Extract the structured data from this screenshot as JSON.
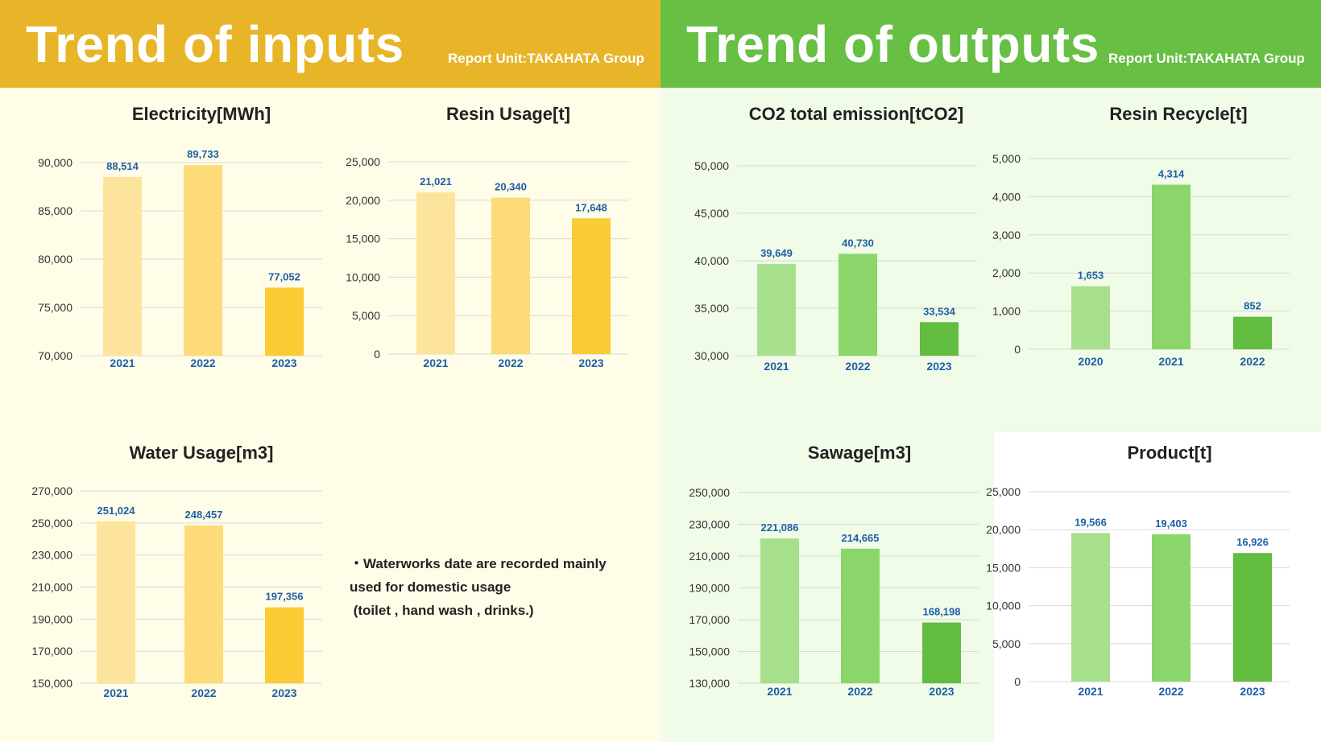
{
  "header": {
    "inputs_title": "Trend of inputs",
    "inputs_unit": "Report Unit:TAKAHATA Group",
    "outputs_title": "Trend of outputs",
    "outputs_unit": "Report Unit:TAKAHATA Group"
  },
  "note": {
    "lines": [
      "・Waterworks date are recorded mainly",
      "used for domestic usage",
      " (toilet , hand wash , drinks.)"
    ]
  },
  "colors": {
    "inputs_header": "#e8b528",
    "outputs_header": "#67bf44",
    "inputs_bars": [
      "#fce49c",
      "#fcdb78",
      "#f9cb35"
    ],
    "outputs_bars": [
      "#a7e08c",
      "#8ad66a",
      "#62bd40"
    ],
    "value_label": "#1f5fa8",
    "grid": "#d9d9d9"
  },
  "chart_data": [
    {
      "id": "electricity",
      "type": "bar",
      "title": "Electricity[MWh]",
      "categories": [
        "2021",
        "2022",
        "2023"
      ],
      "values": [
        88514,
        89733,
        77052
      ],
      "value_labels": [
        "88,514",
        "89,733",
        "77,052"
      ],
      "ylim": [
        70000,
        90000
      ],
      "yticks": [
        "70,000",
        "75,000",
        "80,000",
        "85,000",
        "90,000"
      ],
      "palette": "inputs",
      "grid": true
    },
    {
      "id": "resin-usage",
      "type": "bar",
      "title": "Resin Usage[t]",
      "categories": [
        "2021",
        "2022",
        "2023"
      ],
      "values": [
        21021,
        20340,
        17648
      ],
      "value_labels": [
        "21,021",
        "20,340",
        "17,648"
      ],
      "ylim": [
        0,
        25000
      ],
      "yticks": [
        "0",
        "5,000",
        "10,000",
        "15,000",
        "20,000",
        "25,000"
      ],
      "palette": "inputs",
      "grid": true
    },
    {
      "id": "water-usage",
      "type": "bar",
      "title": "Water Usage[m3]",
      "categories": [
        "2021",
        "2022",
        "2023"
      ],
      "values": [
        251024,
        248457,
        197356
      ],
      "value_labels": [
        "251,024",
        "248,457",
        "197,356"
      ],
      "ylim": [
        150000,
        270000
      ],
      "yticks": [
        "150,000",
        "170,000",
        "190,000",
        "210,000",
        "230,000",
        "250,000",
        "270,000"
      ],
      "palette": "inputs",
      "grid": true
    },
    {
      "id": "co2-emission",
      "type": "bar",
      "title": "CO2 total emission[tCO2]",
      "categories": [
        "2021",
        "2022",
        "2023"
      ],
      "values": [
        39649,
        40730,
        33534
      ],
      "value_labels": [
        "39,649",
        "40,730",
        "33,534"
      ],
      "ylim": [
        30000,
        50000
      ],
      "yticks": [
        "30,000",
        "35,000",
        "40,000",
        "45,000",
        "50,000"
      ],
      "palette": "outputs",
      "grid": true
    },
    {
      "id": "resin-recycle",
      "type": "bar",
      "title": "Resin Recycle[t]",
      "categories": [
        "2020",
        "2021",
        "2022"
      ],
      "values": [
        1653,
        4314,
        852
      ],
      "value_labels": [
        "1,653",
        "4,314",
        "852"
      ],
      "ylim": [
        0,
        5000
      ],
      "yticks": [
        "0",
        "1,000",
        "2,000",
        "3,000",
        "4,000",
        "5,000"
      ],
      "palette": "outputs",
      "grid": true
    },
    {
      "id": "sewage",
      "type": "bar",
      "title": "Sawage[m3]",
      "categories": [
        "2021",
        "2022",
        "2023"
      ],
      "values": [
        221086,
        214665,
        168198
      ],
      "value_labels": [
        "221,086",
        "214,665",
        "168,198"
      ],
      "ylim": [
        130000,
        250000
      ],
      "yticks": [
        "130,000",
        "150,000",
        "170,000",
        "190,000",
        "210,000",
        "230,000",
        "250,000"
      ],
      "palette": "outputs",
      "grid": true
    },
    {
      "id": "product",
      "type": "bar",
      "title": "Product[t]",
      "categories": [
        "2021",
        "2022",
        "2023"
      ],
      "values": [
        19566,
        19403,
        16926
      ],
      "value_labels": [
        "19,566",
        "19,403",
        "16,926"
      ],
      "ylim": [
        0,
        25000
      ],
      "yticks": [
        "0",
        "5,000",
        "10,000",
        "15,000",
        "20,000",
        "25,000"
      ],
      "palette": "outputs",
      "grid": true
    }
  ]
}
